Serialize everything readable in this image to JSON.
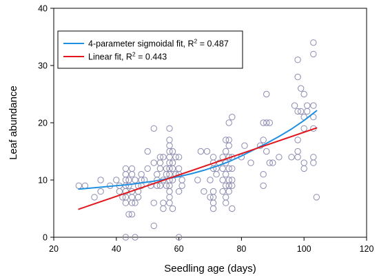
{
  "chart_data": {
    "type": "scatter",
    "xlabel": "Seedling age (days)",
    "ylabel": "Leaf abundance",
    "xlim": [
      20,
      120
    ],
    "ylim": [
      0,
      40
    ],
    "x_ticks": [
      20,
      40,
      60,
      80,
      100,
      120
    ],
    "y_ticks": [
      0,
      10,
      20,
      30,
      40
    ],
    "grid": false,
    "legend_position": "top-left",
    "marker_color": "#8a8ab0",
    "points": [
      [
        28,
        9
      ],
      [
        30,
        9
      ],
      [
        33,
        7
      ],
      [
        35,
        10
      ],
      [
        35,
        8
      ],
      [
        38,
        9
      ],
      [
        40,
        10
      ],
      [
        41,
        9
      ],
      [
        41,
        8
      ],
      [
        42,
        7
      ],
      [
        43,
        12
      ],
      [
        43,
        11
      ],
      [
        43,
        10
      ],
      [
        43,
        9
      ],
      [
        43,
        8
      ],
      [
        43,
        7
      ],
      [
        43,
        6
      ],
      [
        43,
        0
      ],
      [
        44,
        9
      ],
      [
        44,
        4
      ],
      [
        44,
        10
      ],
      [
        45,
        8
      ],
      [
        45,
        7
      ],
      [
        45,
        6
      ],
      [
        45,
        4
      ],
      [
        45,
        11
      ],
      [
        45,
        12
      ],
      [
        46,
        10
      ],
      [
        46,
        6
      ],
      [
        46,
        0
      ],
      [
        47,
        9
      ],
      [
        47,
        8
      ],
      [
        47,
        7
      ],
      [
        48,
        11
      ],
      [
        48,
        9
      ],
      [
        48,
        10
      ],
      [
        49,
        10
      ],
      [
        50,
        15
      ],
      [
        50,
        12
      ],
      [
        51,
        9
      ],
      [
        52,
        19
      ],
      [
        52,
        13
      ],
      [
        52,
        6
      ],
      [
        52,
        2
      ],
      [
        53,
        9
      ],
      [
        53,
        10
      ],
      [
        53,
        11
      ],
      [
        54,
        13
      ],
      [
        54,
        14
      ],
      [
        54,
        12
      ],
      [
        54,
        9
      ],
      [
        55,
        6
      ],
      [
        55,
        5
      ],
      [
        55,
        10
      ],
      [
        55,
        14
      ],
      [
        56,
        11
      ],
      [
        56,
        12
      ],
      [
        56,
        9
      ],
      [
        57,
        19
      ],
      [
        57,
        17
      ],
      [
        57,
        16
      ],
      [
        57,
        15
      ],
      [
        57,
        14
      ],
      [
        57,
        13
      ],
      [
        57,
        12
      ],
      [
        57,
        11
      ],
      [
        57,
        10
      ],
      [
        57,
        9
      ],
      [
        57,
        8
      ],
      [
        57,
        7
      ],
      [
        57,
        6
      ],
      [
        58,
        15
      ],
      [
        58,
        13
      ],
      [
        58,
        12
      ],
      [
        58,
        10
      ],
      [
        58,
        5
      ],
      [
        59,
        11
      ],
      [
        59,
        14
      ],
      [
        60,
        14
      ],
      [
        60,
        12
      ],
      [
        60,
        11
      ],
      [
        60,
        8
      ],
      [
        60,
        0
      ],
      [
        61,
        9
      ],
      [
        61,
        10
      ],
      [
        66,
        10
      ],
      [
        67,
        15
      ],
      [
        68,
        8
      ],
      [
        69,
        15
      ],
      [
        70,
        7
      ],
      [
        70,
        10
      ],
      [
        71,
        12
      ],
      [
        71,
        13
      ],
      [
        71,
        14
      ],
      [
        71,
        8
      ],
      [
        71,
        7
      ],
      [
        71,
        6
      ],
      [
        71,
        5
      ],
      [
        72,
        11
      ],
      [
        72,
        12
      ],
      [
        73,
        13
      ],
      [
        74,
        14
      ],
      [
        74,
        12
      ],
      [
        74,
        8
      ],
      [
        74,
        10
      ],
      [
        75,
        17
      ],
      [
        75,
        15
      ],
      [
        75,
        13
      ],
      [
        75,
        11
      ],
      [
        75,
        9
      ],
      [
        75,
        7
      ],
      [
        75,
        6
      ],
      [
        76,
        17
      ],
      [
        76,
        16
      ],
      [
        76,
        14
      ],
      [
        76,
        12
      ],
      [
        76,
        10
      ],
      [
        76,
        9
      ],
      [
        76,
        8
      ],
      [
        76,
        20
      ],
      [
        77,
        21
      ],
      [
        77,
        14
      ],
      [
        77,
        12
      ],
      [
        77,
        10
      ],
      [
        77,
        9
      ],
      [
        77,
        5
      ],
      [
        80,
        14
      ],
      [
        81,
        16
      ],
      [
        83,
        13
      ],
      [
        86,
        16
      ],
      [
        87,
        20
      ],
      [
        87,
        17
      ],
      [
        87,
        11
      ],
      [
        87,
        9
      ],
      [
        88,
        25
      ],
      [
        88,
        20
      ],
      [
        88,
        15
      ],
      [
        89,
        20
      ],
      [
        89,
        13
      ],
      [
        90,
        13
      ],
      [
        92,
        14
      ],
      [
        96,
        14
      ],
      [
        97,
        23
      ],
      [
        98,
        31
      ],
      [
        98,
        28
      ],
      [
        98,
        22
      ],
      [
        98,
        17
      ],
      [
        98,
        15
      ],
      [
        98,
        14
      ],
      [
        99,
        26
      ],
      [
        99,
        22
      ],
      [
        100,
        25
      ],
      [
        100,
        21
      ],
      [
        100,
        19
      ],
      [
        100,
        13
      ],
      [
        100,
        12
      ],
      [
        101,
        23
      ],
      [
        101,
        22
      ],
      [
        103,
        34
      ],
      [
        103,
        32
      ],
      [
        103,
        23
      ],
      [
        103,
        21
      ],
      [
        103,
        19
      ],
      [
        103,
        14
      ],
      [
        103,
        13
      ],
      [
        104,
        7
      ]
    ],
    "series": [
      {
        "name_prefix": "4-parameter sigmoidal fit, R",
        "name_suffix": " = 0.487",
        "color": "#1f8fe0",
        "x": [
          28,
          32,
          36,
          40,
          44,
          48,
          52,
          56,
          60,
          64,
          68,
          72,
          76,
          80,
          84,
          88,
          92,
          96,
          100,
          104
        ],
        "y": [
          8.4,
          8.6,
          8.8,
          9.0,
          9.2,
          9.5,
          9.8,
          10.2,
          10.6,
          11.1,
          11.7,
          12.4,
          13.2,
          14.2,
          15.3,
          16.4,
          17.6,
          18.9,
          20.4,
          22.1
        ]
      },
      {
        "name_prefix": "Linear fit, R",
        "name_suffix": " = 0.443",
        "color": "#e0181e",
        "x": [
          28,
          104
        ],
        "y": [
          4.9,
          19.1
        ]
      }
    ]
  }
}
